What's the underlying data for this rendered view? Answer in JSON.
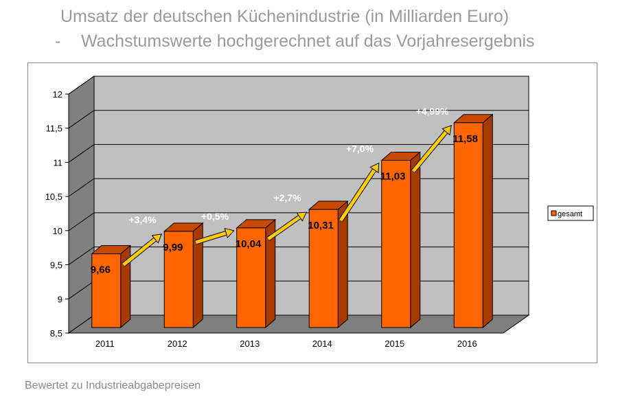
{
  "title": "Umsatz der deutschen Küchenindustrie (in Milliarden Euro)",
  "subtitle_dash": "-",
  "subtitle": "Wachstumswerte hochgerechnet auf das Vorjahresergebnis",
  "footnote": "Bewertet zu Industrieabgabepreisen",
  "chart_data": {
    "type": "bar",
    "categories": [
      "2011",
      "2012",
      "2013",
      "2014",
      "2015",
      "2016"
    ],
    "series": [
      {
        "name": "gesamt",
        "values": [
          9.66,
          9.99,
          10.04,
          10.31,
          11.03,
          11.58
        ]
      }
    ],
    "data_labels": [
      "9,66",
      "9,99",
      "10,04",
      "10,31",
      "11,03",
      "11,58"
    ],
    "growth_labels": [
      "+3,4%",
      "+0,5%",
      "+2,7%",
      "+7,0%",
      "+4,99%"
    ],
    "yticks": [
      "8,5",
      "9",
      "9,5",
      "10",
      "10,5",
      "11",
      "11,5",
      "12"
    ],
    "ylim": [
      8.5,
      12
    ],
    "legend_position": "right",
    "grid": true,
    "style": "3d",
    "colors": {
      "bar_front": "#ff6600",
      "bar_side": "#a63a00",
      "bar_top": "#c84a00",
      "arrow": "#ffcc00",
      "wall": "#c0c0c0",
      "side_wall": "#808080",
      "floor": "#7f7f7f"
    }
  }
}
